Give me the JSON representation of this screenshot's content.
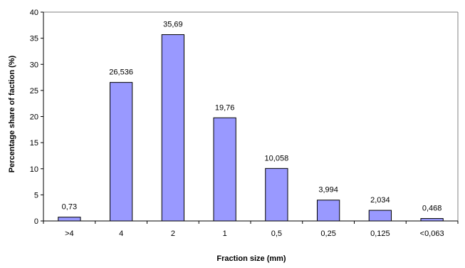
{
  "chart_data": {
    "type": "bar",
    "title": "",
    "xlabel": "Fraction size (mm)",
    "ylabel": "Percentage share of faction (%)",
    "categories": [
      ">4",
      "4",
      "2",
      "1",
      "0,5",
      "0,25",
      "0,125",
      "<0,063"
    ],
    "values": [
      0.73,
      26.536,
      35.69,
      19.76,
      10.058,
      3.994,
      2.034,
      0.468
    ],
    "data_labels": [
      "0,73",
      "26,536",
      "35,69",
      "19,76",
      "10,058",
      "3,994",
      "2,034",
      "0,468"
    ],
    "ylim": [
      0,
      40
    ],
    "yticks": [
      0,
      5,
      10,
      15,
      20,
      25,
      30,
      35,
      40
    ],
    "grid": false,
    "legend": "none",
    "colors": {
      "bar_fill": "#9999ff",
      "bar_stroke": "#000000",
      "axis": "#000000",
      "plot_border": "#808080"
    }
  }
}
